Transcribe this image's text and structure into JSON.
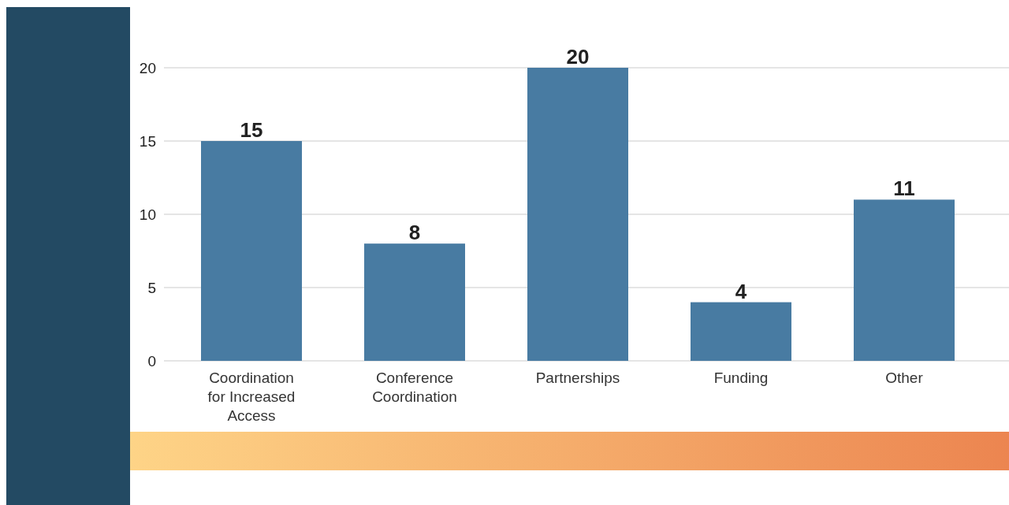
{
  "chart_data": {
    "type": "bar",
    "categories": [
      "Coordination for Increased Access",
      "Conference Coordination",
      "Partnerships",
      "Funding",
      "Other"
    ],
    "values": [
      15,
      8,
      20,
      4,
      11
    ],
    "color": "#487ba2",
    "ylim": [
      0,
      20
    ],
    "yticks": [
      0,
      5,
      10,
      15,
      20
    ],
    "grid": "y",
    "data_labels": true
  }
}
